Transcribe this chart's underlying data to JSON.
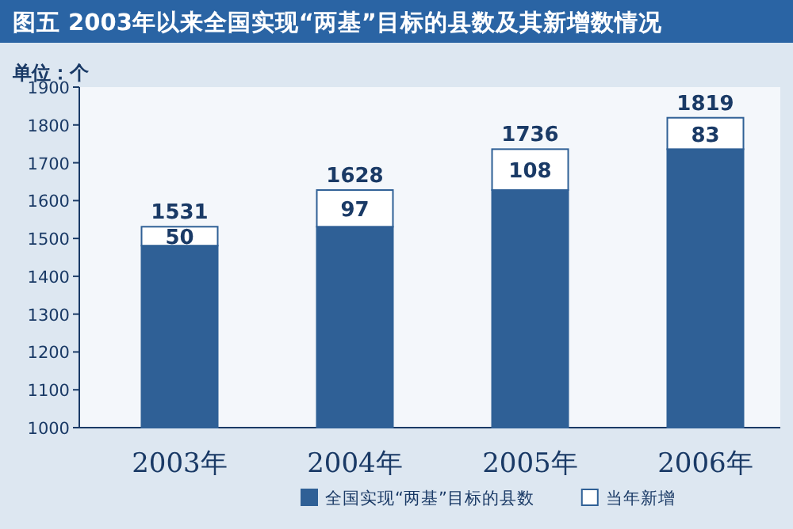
{
  "chart_data": {
    "type": "bar",
    "title": "图五 2003年以来全国实现“两基”目标的县数及其新增数情况",
    "ylabel": "单位：个",
    "categories": [
      "2003年",
      "2004年",
      "2005年",
      "2006年"
    ],
    "stacked": true,
    "series": [
      {
        "name": "全国实现“两基”目标的县数",
        "color": "#2f6096",
        "values": [
          1481,
          1531,
          1628,
          1736
        ]
      },
      {
        "name": "当年新增",
        "color": "#ffffff",
        "base": [
          1481,
          1531,
          1628,
          1736
        ],
        "values": [
          50,
          97,
          108,
          83
        ],
        "value_labels": [
          "50",
          "97",
          "108",
          "83"
        ]
      }
    ],
    "totals": [
      "1531",
      "1628",
      "1736",
      "1819"
    ],
    "ylim": [
      1000,
      1900
    ],
    "yticks": [
      1000,
      1100,
      1200,
      1300,
      1400,
      1500,
      1600,
      1700,
      1800,
      1900
    ],
    "legend": "bottom",
    "grid": false
  }
}
